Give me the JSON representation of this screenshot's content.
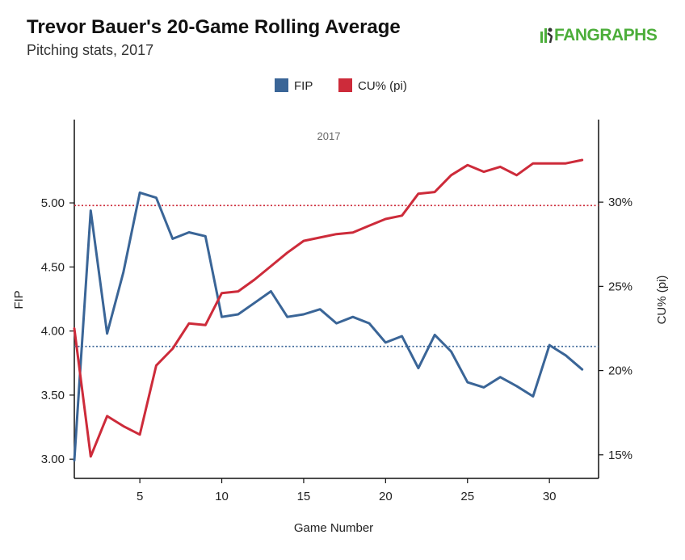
{
  "header": {
    "title": "Trevor Bauer's 20-Game Rolling Average",
    "subtitle": "Pitching stats, 2017",
    "logo_text": "FANGRAPHS"
  },
  "colors": {
    "fip": "#3a6597",
    "cu": "#cd2b3a",
    "logo": "#4cae3a"
  },
  "chart_data": {
    "type": "line",
    "annotation": "2017",
    "xlabel": "Game Number",
    "ylabel_left": "FIP",
    "ylabel_right": "CU% (pi)",
    "xlim": [
      1,
      33
    ],
    "ylim_left": [
      2.85,
      5.65
    ],
    "ylim_right": [
      13.6,
      34.9
    ],
    "x_ticks": [
      5,
      10,
      15,
      20,
      25,
      30
    ],
    "y_ticks_left": [
      "3.00",
      "3.50",
      "4.00",
      "4.50",
      "5.00"
    ],
    "y_ticks_left_values": [
      3.0,
      3.5,
      4.0,
      4.5,
      5.0
    ],
    "y_ticks_right": [
      "15%",
      "20%",
      "25%",
      "30%"
    ],
    "y_ticks_right_values": [
      15,
      20,
      25,
      30
    ],
    "legend": [
      "FIP",
      "CU% (pi)"
    ],
    "legend_position": "top-center",
    "x": [
      1,
      2,
      3,
      4,
      5,
      6,
      7,
      8,
      9,
      10,
      11,
      12,
      13,
      14,
      15,
      16,
      17,
      18,
      19,
      20,
      21,
      22,
      23,
      24,
      25,
      26,
      27,
      28,
      29,
      30,
      31,
      32
    ],
    "series": [
      {
        "name": "FIP",
        "axis": "left",
        "color": "#3a6597",
        "average": 3.88,
        "values": [
          2.99,
          4.94,
          3.98,
          4.46,
          5.08,
          5.04,
          4.72,
          4.77,
          4.74,
          4.11,
          4.13,
          4.22,
          4.31,
          4.11,
          4.13,
          4.17,
          4.06,
          4.11,
          4.06,
          3.91,
          3.96,
          3.71,
          3.97,
          3.84,
          3.6,
          3.56,
          3.64,
          3.57,
          3.49,
          3.89,
          3.81,
          3.7
        ]
      },
      {
        "name": "CU% (pi)",
        "axis": "right",
        "color": "#cd2b3a",
        "average": 29.8,
        "values": [
          22.5,
          14.9,
          17.3,
          16.7,
          16.2,
          20.3,
          21.3,
          22.8,
          22.7,
          24.6,
          24.7,
          25.4,
          26.2,
          27.0,
          27.7,
          27.9,
          28.1,
          28.2,
          28.6,
          29.0,
          29.2,
          30.5,
          30.6,
          31.6,
          32.2,
          31.8,
          32.1,
          31.6,
          32.3,
          32.3,
          32.3,
          32.5
        ]
      }
    ]
  }
}
